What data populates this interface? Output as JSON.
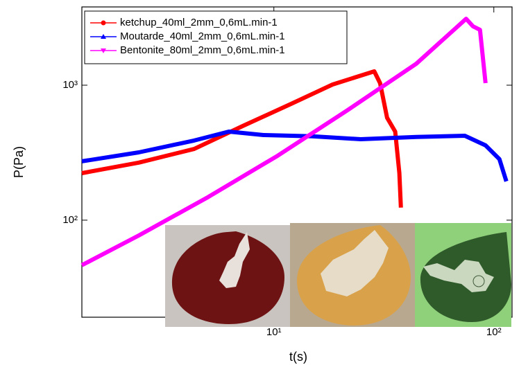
{
  "chart_data": {
    "type": "line",
    "x_label": "t(s)",
    "y_label": "P(Pa)",
    "xlog": true,
    "ylog": true,
    "xlim": [
      1.34,
      121
    ],
    "ylim": [
      19.1,
      3800
    ],
    "xticks": [
      {
        "value": 10,
        "label": "10¹"
      },
      {
        "value": 100,
        "label": "10²"
      }
    ],
    "yticks": [
      {
        "value": 100,
        "label": "10²"
      },
      {
        "value": 1000,
        "label": "10³"
      }
    ],
    "legend": "upper left",
    "series": [
      {
        "name": "ketchup_40ml_2mm_0,6mL.min-1",
        "color": "#ff0000",
        "marker": "circle",
        "x": [
          1.34,
          2.43,
          4.34,
          7.21,
          12.0,
          18.5,
          28.6,
          30.4,
          32.7,
          35.6,
          37.2,
          37.8
        ],
        "values": [
          223,
          267,
          337,
          498,
          728,
          1012,
          1267,
          1036,
          574,
          453,
          223,
          124
        ]
      },
      {
        "name": "Moutarde_40ml_2mm_0,6mL.min-1",
        "color": "#0000ff",
        "marker": "triangle-up",
        "x": [
          1.34,
          2.43,
          4.34,
          6.24,
          8.97,
          14.9,
          24.8,
          44.4,
          73.8,
          91.7,
          106,
          114
        ],
        "values": [
          273,
          318,
          389,
          453,
          427,
          418,
          398,
          413,
          422,
          358,
          283,
          194
        ]
      },
      {
        "name": "Bentonite_80ml_2mm_0,6mL.min-1",
        "color": "#ff00ff",
        "marker": "triangle-down",
        "x": [
          1.34,
          2.43,
          5.01,
          10.4,
          21.4,
          44.4,
          74.8,
          80.4,
          86.5,
          91.7
        ],
        "values": [
          46.4,
          77,
          148,
          300,
          646,
          1443,
          3105,
          2729,
          2570,
          1036
        ]
      }
    ]
  }
}
